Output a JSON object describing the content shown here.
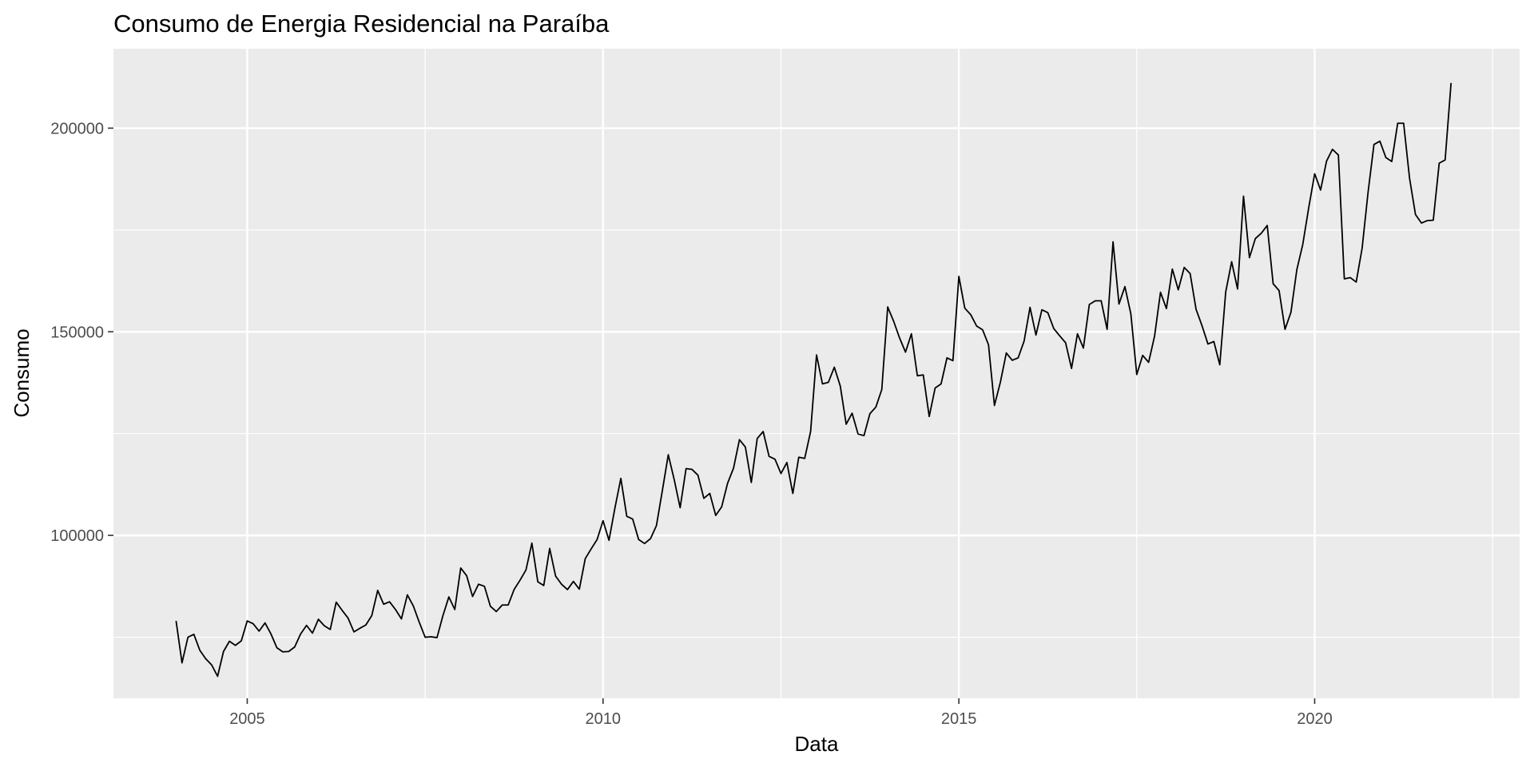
{
  "chart_data": {
    "type": "line",
    "title": "Consumo de Energia Residencial na Paraíba",
    "xlabel": "Data",
    "ylabel": "Consumo",
    "x_ticks": [
      2005,
      2010,
      2015,
      2020
    ],
    "y_ticks": [
      100000,
      150000,
      200000
    ],
    "xlim": [
      2003.12,
      2022.88
    ],
    "ylim": [
      60000,
      219500
    ],
    "grid": true,
    "legend": "none",
    "colors": {
      "panel": "#ebebeb",
      "grid": "#ffffff",
      "line": "#000000",
      "tick_text": "#4d4d4d"
    },
    "start_year": 2004,
    "series": [
      {
        "values": [
          79000,
          68700,
          75000,
          75700,
          71800,
          69700,
          68200,
          65400,
          71500,
          74000,
          73000,
          74100,
          79000,
          78300,
          76500,
          78500,
          75800,
          72400,
          71400,
          71500,
          72600,
          75800,
          77900,
          76000,
          79400,
          77800,
          76900,
          83600,
          81600,
          79700,
          76300,
          77200,
          78000,
          80300,
          86500,
          83100,
          83700,
          81800,
          79500,
          85400,
          82700,
          78700,
          75000,
          75100,
          74900,
          80300,
          84900,
          81800,
          92000,
          90100,
          85000,
          88000,
          87500,
          82600,
          81300,
          82900,
          82900,
          86700,
          89000,
          91500,
          98100,
          88600,
          87700,
          96800,
          90000,
          88000,
          86700,
          88700,
          86800,
          94300,
          96700,
          99000,
          103600,
          98800,
          106700,
          114000,
          104700,
          104000,
          99000,
          98000,
          99200,
          102400,
          111000,
          119800,
          113700,
          106800,
          116400,
          116200,
          114800,
          109100,
          110300,
          104900,
          107000,
          112800,
          116500,
          123500,
          121700,
          113000,
          123800,
          125500,
          119400,
          118700,
          115200,
          117900,
          110300,
          119200,
          118900,
          125500,
          144300,
          137200,
          137600,
          141300,
          136700,
          127300,
          130000,
          124900,
          124500,
          129900,
          131500,
          135800,
          156100,
          152600,
          148500,
          145000,
          149500,
          139200,
          139400,
          129200,
          136200,
          137200,
          143600,
          142900,
          163600,
          155800,
          154200,
          151400,
          150500,
          146800,
          131900,
          137600,
          144800,
          143000,
          143600,
          147700,
          156000,
          149200,
          155400,
          154700,
          150800,
          149000,
          147300,
          141000,
          149500,
          146000,
          156700,
          157600,
          157600,
          150600,
          172100,
          156800,
          161100,
          154400,
          139500,
          144200,
          142500,
          148900,
          159700,
          155700,
          165400,
          160300,
          165800,
          164300,
          155500,
          151500,
          147000,
          147600,
          141900,
          159800,
          167200,
          160500,
          183300,
          168200,
          172900,
          174200,
          176100,
          161800,
          160100,
          150600,
          154800,
          165300,
          171500,
          180500,
          188800,
          184800,
          191900,
          194800,
          193400,
          163000,
          163300,
          162200,
          170500,
          184200,
          196000,
          196800,
          192800,
          191800,
          201200,
          201200,
          187700,
          178800,
          176700,
          177300,
          177400,
          191400,
          192200,
          211100
        ]
      }
    ]
  }
}
